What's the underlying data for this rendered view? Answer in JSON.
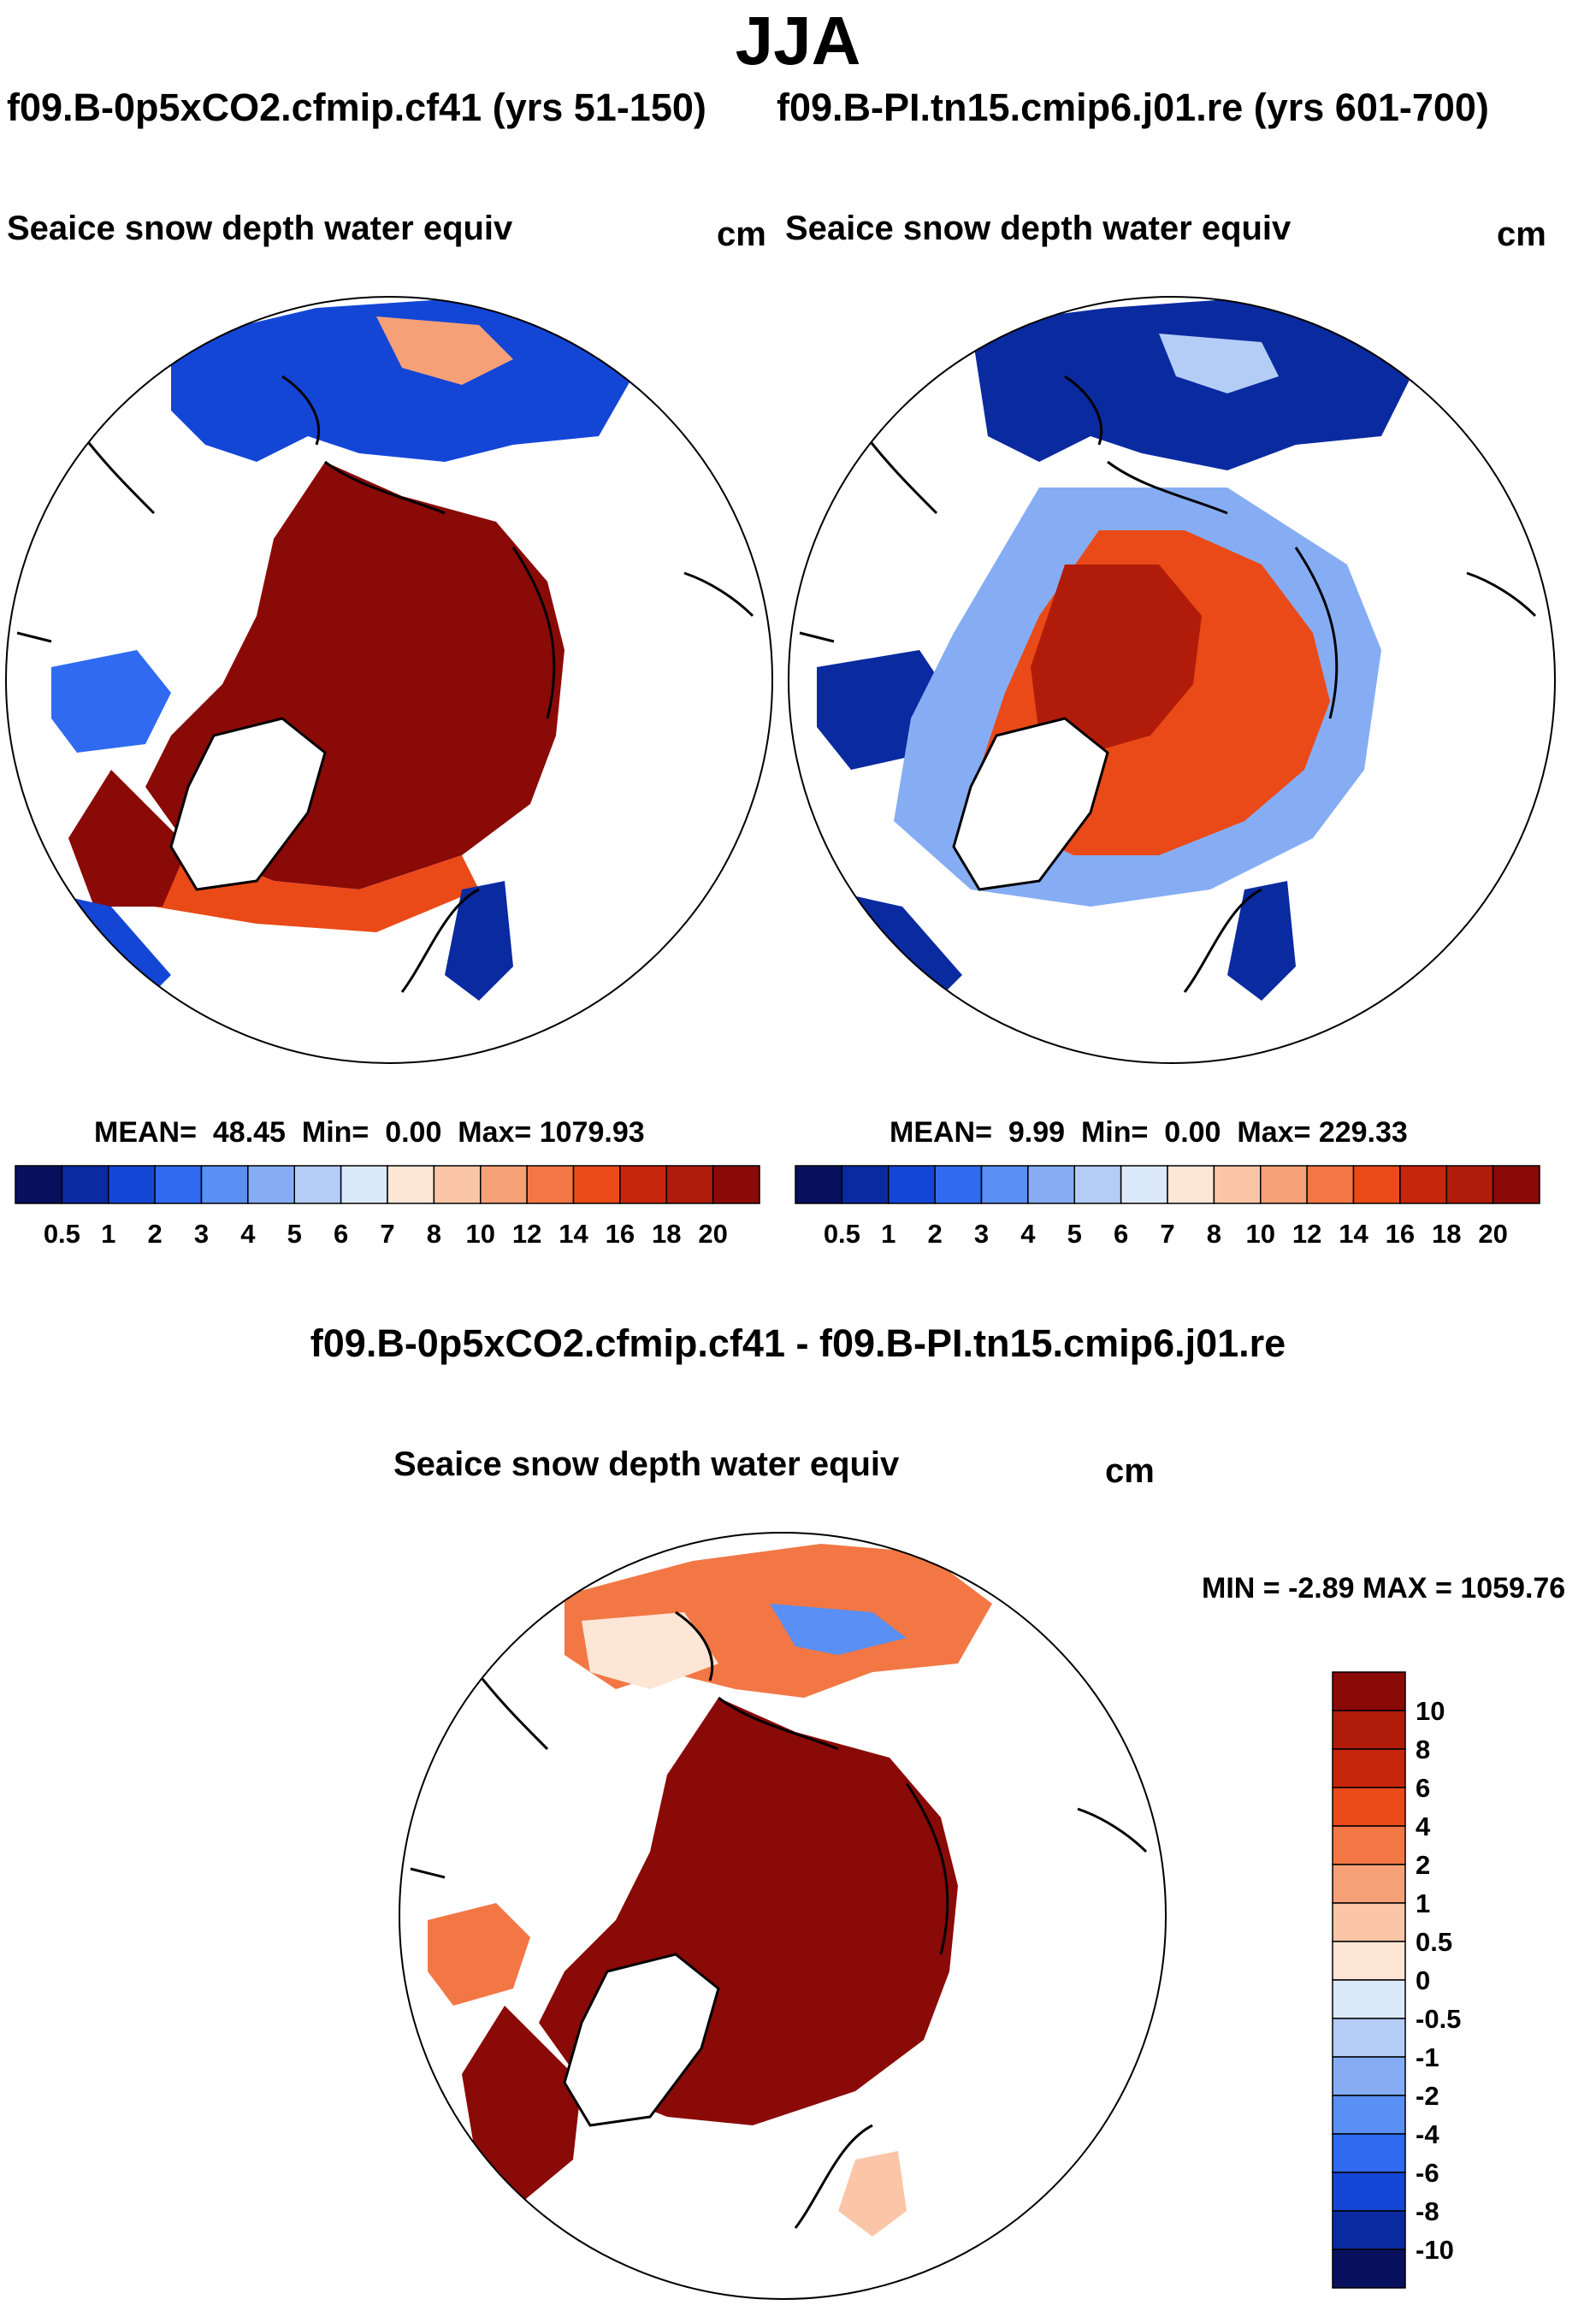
{
  "season": "JJA",
  "panels": [
    {
      "id": "case1",
      "case_name": "f09.B-0p5xCO2.cfmip.cf41 (yrs 51-150)",
      "variable": "Seaice snow depth water equiv",
      "units": "cm",
      "stats": {
        "mean_label": "MEAN=",
        "mean": "48.45",
        "min_label": "Min=",
        "min": "0.00",
        "max_label": "Max=",
        "max": "1079.93"
      }
    },
    {
      "id": "case2",
      "case_name": "f09.B-PI.tn15.cmip6.j01.re (yrs 601-700)",
      "variable": "Seaice snow depth water equiv",
      "units": "cm",
      "stats": {
        "mean_label": "MEAN=",
        "mean": "9.99",
        "min_label": "Min=",
        "min": "0.00",
        "max_label": "Max=",
        "max": "229.33"
      }
    }
  ],
  "difference": {
    "title": "f09.B-0p5xCO2.cfmip.cf41 - f09.B-PI.tn15.cmip6.j01.re",
    "variable": "Seaice snow depth water equiv",
    "units": "cm",
    "minmax_text": "MIN =  -2.89 MAX = 1059.76"
  },
  "colorbar_abs": {
    "labels": [
      "0.5",
      "1",
      "2",
      "3",
      "4",
      "5",
      "6",
      "7",
      "8",
      "10",
      "12",
      "14",
      "16",
      "18",
      "20"
    ],
    "colors": [
      "#08115e",
      "#0a2aa0",
      "#1446d6",
      "#2f6af0",
      "#5a8ff3",
      "#86adf4",
      "#b4cdf7",
      "#dbe9fb",
      "#fde6d6",
      "#fbc6a8",
      "#f6a078",
      "#f27745",
      "#ea4a18",
      "#c8260c",
      "#b11c0a",
      "#8a0a08"
    ]
  },
  "colorbar_diff": {
    "labels": [
      "10",
      "8",
      "6",
      "4",
      "2",
      "1",
      "0.5",
      "0",
      "-0.5",
      "-1",
      "-2",
      "-4",
      "-6",
      "-8",
      "-10"
    ],
    "colors": [
      "#8a0a08",
      "#b11c0a",
      "#c8260c",
      "#ea4a18",
      "#f27745",
      "#f6a078",
      "#fbc6a8",
      "#fde6d6",
      "#dbe9fb",
      "#b4cdf7",
      "#86adf4",
      "#5a8ff3",
      "#2f6af0",
      "#1446d6",
      "#0a2aa0",
      "#08115e"
    ]
  }
}
